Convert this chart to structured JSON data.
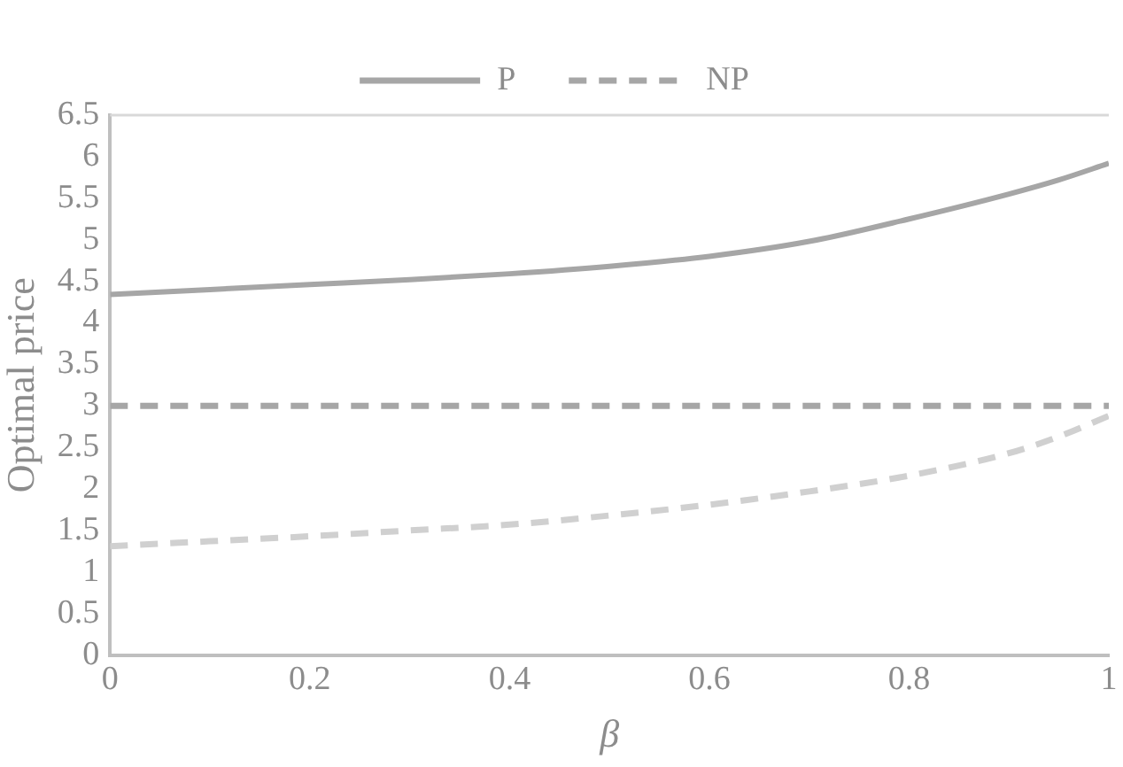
{
  "chart_data": {
    "type": "line",
    "xlabel": "β",
    "ylabel": "Optimal price",
    "x": [
      0,
      0.1,
      0.2,
      0.3,
      0.4,
      0.5,
      0.6,
      0.7,
      0.8,
      0.9,
      0.95,
      1
    ],
    "series": [
      {
        "name": "P",
        "color": "#a6a6a6",
        "line_style": "solid",
        "values": [
          4.34,
          4.4,
          4.46,
          4.52,
          4.59,
          4.68,
          4.8,
          4.98,
          5.25,
          5.55,
          5.72,
          5.92
        ]
      },
      {
        "name": "NP",
        "color": "#a6a6a6",
        "line_style": "dashed",
        "values": [
          3,
          3,
          3,
          3,
          3,
          3,
          3,
          3,
          3,
          3,
          3,
          3
        ]
      },
      {
        "color": "#d0d0d0",
        "line_style": "dashed",
        "values": [
          1.31,
          1.37,
          1.43,
          1.5,
          1.57,
          1.68,
          1.81,
          1.97,
          2.16,
          2.43,
          2.63,
          2.88
        ]
      }
    ],
    "xlim": [
      0,
      1
    ],
    "xticks": [
      0,
      0.2,
      0.4,
      0.6,
      0.8,
      1
    ],
    "ylim": [
      0,
      6.5
    ],
    "yticks": [
      0,
      0.5,
      1,
      1.5,
      2,
      2.5,
      3,
      3.5,
      4,
      4.5,
      5,
      5.5,
      6,
      6.5
    ],
    "grid": false,
    "legend": "top",
    "marker": "none"
  }
}
